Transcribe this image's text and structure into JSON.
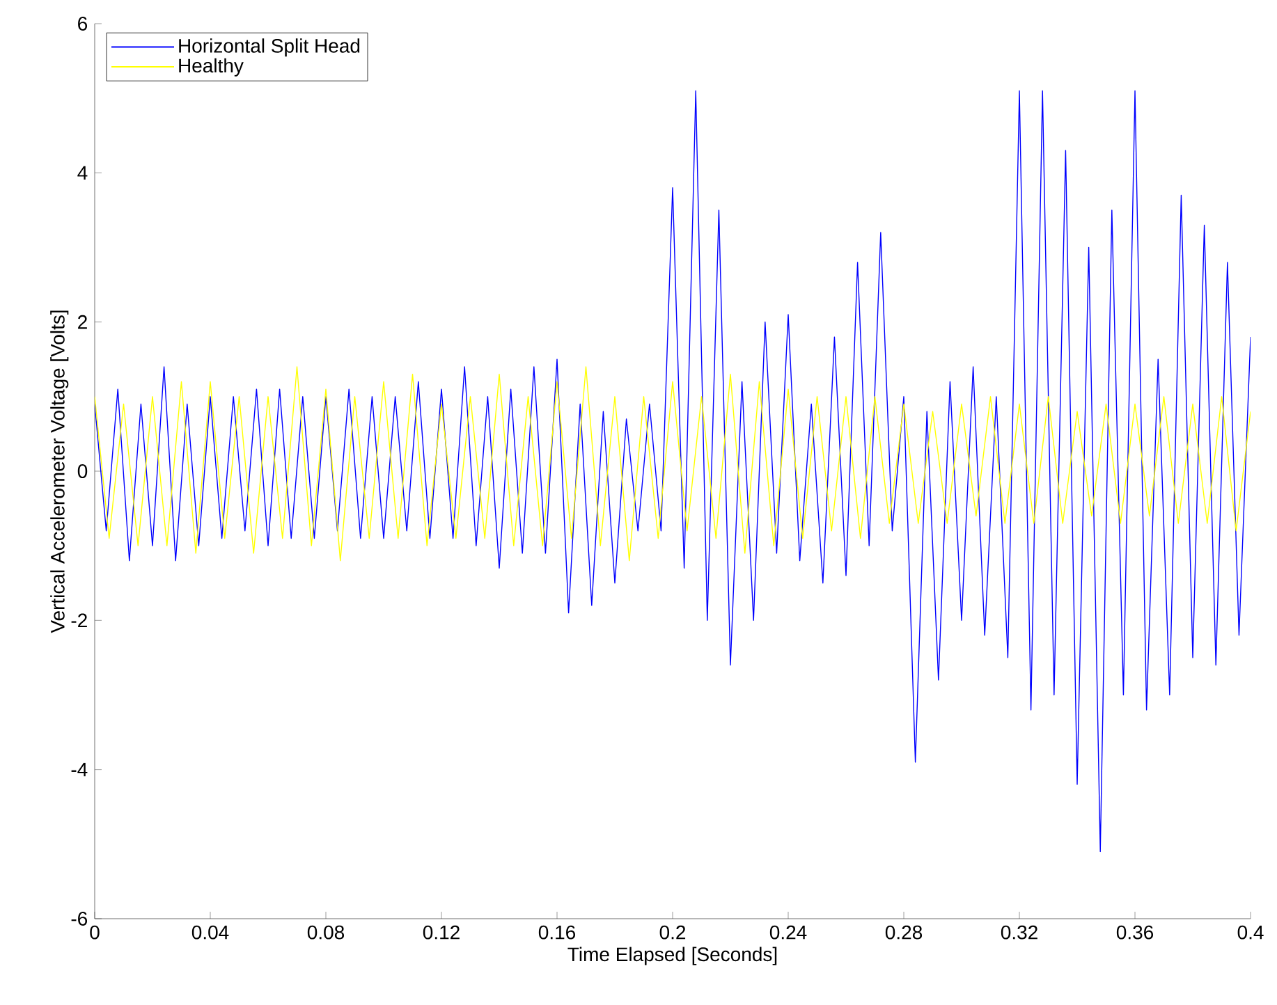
{
  "chart_data": {
    "type": "line",
    "xlabel": "Time Elapsed [Seconds]",
    "ylabel": "Vertical Accelerometer Voltage [Volts]",
    "xlim": [
      0,
      0.4
    ],
    "ylim": [
      -6,
      6
    ],
    "xticks": [
      0,
      0.04,
      0.08,
      0.12,
      0.16,
      0.2,
      0.24,
      0.28,
      0.32,
      0.36,
      0.4
    ],
    "yticks": [
      -6,
      -4,
      -2,
      0,
      2,
      4,
      6
    ],
    "legend": "top left",
    "series": [
      {
        "name": "Horizontal Split Head",
        "color": "#0000ff",
        "x": [
          0,
          0.004,
          0.008,
          0.012,
          0.016,
          0.02,
          0.024,
          0.028,
          0.032,
          0.036,
          0.04,
          0.044,
          0.048,
          0.052,
          0.056,
          0.06,
          0.064,
          0.068,
          0.072,
          0.076,
          0.08,
          0.084,
          0.088,
          0.092,
          0.096,
          0.1,
          0.104,
          0.108,
          0.112,
          0.116,
          0.12,
          0.124,
          0.128,
          0.132,
          0.136,
          0.14,
          0.144,
          0.148,
          0.152,
          0.156,
          0.16,
          0.164,
          0.168,
          0.172,
          0.176,
          0.18,
          0.184,
          0.188,
          0.192,
          0.196,
          0.2,
          0.204,
          0.208,
          0.212,
          0.216,
          0.22,
          0.224,
          0.228,
          0.232,
          0.236,
          0.24,
          0.244,
          0.248,
          0.252,
          0.256,
          0.26,
          0.264,
          0.268,
          0.272,
          0.276,
          0.28,
          0.284,
          0.288,
          0.292,
          0.296,
          0.3,
          0.304,
          0.308,
          0.312,
          0.316,
          0.32,
          0.324,
          0.328,
          0.332,
          0.336,
          0.34,
          0.344,
          0.348,
          0.352,
          0.356,
          0.36,
          0.364,
          0.368,
          0.372,
          0.376,
          0.38,
          0.384,
          0.388,
          0.392,
          0.396,
          0.4
        ],
        "values": [
          0.9,
          -0.8,
          1.1,
          -1.2,
          0.9,
          -1.0,
          1.4,
          -1.2,
          0.9,
          -1.0,
          1.0,
          -0.9,
          1.0,
          -0.8,
          1.1,
          -1.0,
          1.1,
          -0.9,
          1.0,
          -0.9,
          1.0,
          -0.8,
          1.1,
          -0.9,
          1.0,
          -0.9,
          1.0,
          -0.8,
          1.2,
          -0.9,
          1.1,
          -0.9,
          1.4,
          -1.0,
          1.0,
          -1.3,
          1.1,
          -1.1,
          1.4,
          -1.1,
          1.5,
          -1.9,
          0.9,
          -1.8,
          0.8,
          -1.5,
          0.7,
          -0.8,
          0.9,
          -0.8,
          3.8,
          -1.3,
          5.1,
          -2.0,
          3.5,
          -2.6,
          1.2,
          -2.0,
          2.0,
          -1.1,
          2.1,
          -1.2,
          0.9,
          -1.5,
          1.8,
          -1.4,
          2.8,
          -1.0,
          3.2,
          -0.8,
          1.0,
          -3.9,
          0.8,
          -2.8,
          1.2,
          -2.0,
          1.4,
          -2.2,
          1.0,
          -2.5,
          5.1,
          -3.2,
          5.1,
          -3.0,
          4.3,
          -4.2,
          3.0,
          -5.1,
          3.5,
          -3.0,
          5.1,
          -3.2,
          1.5,
          -3.0,
          3.7,
          -2.5,
          3.3,
          -2.6,
          2.8,
          -2.2,
          1.8
        ]
      },
      {
        "name": "Healthy",
        "color": "#ffff00",
        "x": [
          0,
          0.005,
          0.01,
          0.015,
          0.02,
          0.025,
          0.03,
          0.035,
          0.04,
          0.045,
          0.05,
          0.055,
          0.06,
          0.065,
          0.07,
          0.075,
          0.08,
          0.085,
          0.09,
          0.095,
          0.1,
          0.105,
          0.11,
          0.115,
          0.12,
          0.125,
          0.13,
          0.135,
          0.14,
          0.145,
          0.15,
          0.155,
          0.16,
          0.165,
          0.17,
          0.175,
          0.18,
          0.185,
          0.19,
          0.195,
          0.2,
          0.205,
          0.21,
          0.215,
          0.22,
          0.225,
          0.23,
          0.235,
          0.24,
          0.245,
          0.25,
          0.255,
          0.26,
          0.265,
          0.27,
          0.275,
          0.28,
          0.285,
          0.29,
          0.295,
          0.3,
          0.305,
          0.31,
          0.315,
          0.32,
          0.325,
          0.33,
          0.335,
          0.34,
          0.345,
          0.35,
          0.355,
          0.36,
          0.365,
          0.37,
          0.375,
          0.38,
          0.385,
          0.39,
          0.395,
          0.4
        ],
        "values": [
          1.0,
          -0.9,
          0.9,
          -1.0,
          1.0,
          -1.0,
          1.2,
          -1.1,
          1.2,
          -0.9,
          1.0,
          -1.1,
          1.0,
          -0.9,
          1.4,
          -1.0,
          1.1,
          -1.2,
          1.0,
          -0.9,
          1.2,
          -0.9,
          1.3,
          -1.0,
          0.9,
          -0.9,
          1.0,
          -0.9,
          1.3,
          -1.0,
          1.0,
          -1.0,
          1.2,
          -0.9,
          1.4,
          -1.0,
          1.0,
          -1.2,
          1.0,
          -0.9,
          1.2,
          -0.8,
          1.0,
          -0.9,
          1.3,
          -1.1,
          1.2,
          -1.0,
          1.1,
          -0.9,
          1.0,
          -0.8,
          1.0,
          -0.9,
          1.0,
          -0.7,
          0.9,
          -0.7,
          0.8,
          -0.7,
          0.9,
          -0.6,
          1.0,
          -0.7,
          0.9,
          -0.7,
          1.0,
          -0.7,
          0.8,
          -0.6,
          0.9,
          -0.7,
          0.9,
          -0.6,
          1.0,
          -0.7,
          0.9,
          -0.7,
          1.0,
          -0.8,
          0.8
        ]
      }
    ]
  }
}
